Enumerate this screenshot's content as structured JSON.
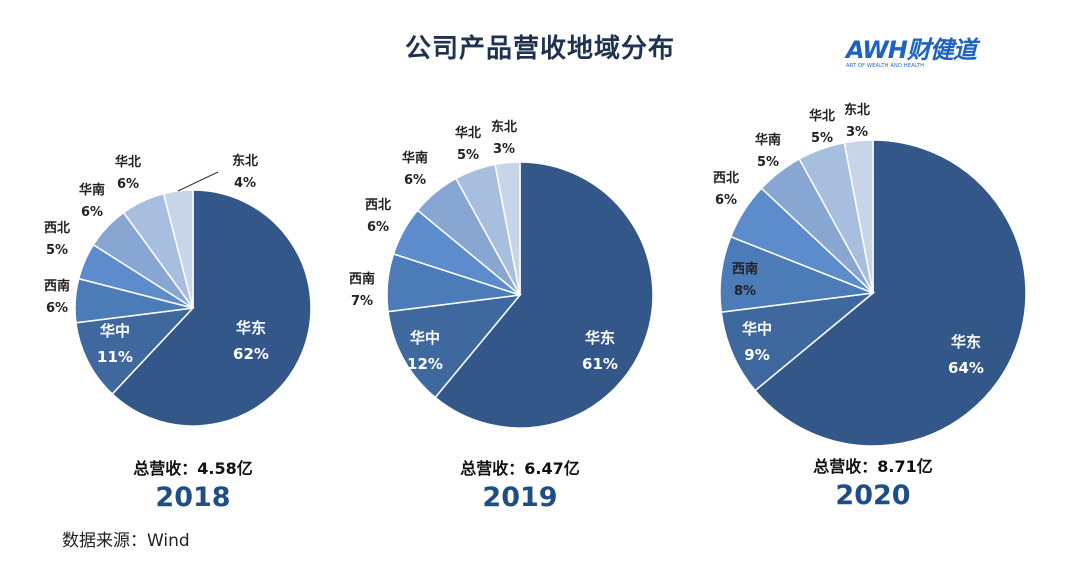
{
  "title": "公司产品营收地域分布",
  "logo": {
    "brand": "AWH财健道",
    "tagline": "ART OF WEALTH AND HEALTH"
  },
  "source": "数据来源：Wind",
  "colors": [
    "#34578a",
    "#3f699e",
    "#4b7cb7",
    "#5c8ccc",
    "#87a7d2",
    "#a8bede",
    "#c8d4e8"
  ],
  "chart_data": [
    {
      "type": "pie",
      "year": "2018",
      "total_label": "总营收：4.58亿",
      "slices": [
        {
          "label": "华东",
          "value": 62,
          "text": "62%"
        },
        {
          "label": "华中",
          "value": 11,
          "text": "11%"
        },
        {
          "label": "西南",
          "value": 6,
          "text": "6%"
        },
        {
          "label": "西北",
          "value": 5,
          "text": "5%"
        },
        {
          "label": "华南",
          "value": 6,
          "text": "6%"
        },
        {
          "label": "华北",
          "value": 6,
          "text": "6%"
        },
        {
          "label": "东北",
          "value": 4,
          "text": "4%"
        }
      ]
    },
    {
      "type": "pie",
      "year": "2019",
      "total_label": "总营收：6.47亿",
      "slices": [
        {
          "label": "华东",
          "value": 61,
          "text": "61%"
        },
        {
          "label": "华中",
          "value": 12,
          "text": "12%"
        },
        {
          "label": "西南",
          "value": 7,
          "text": "7%"
        },
        {
          "label": "西北",
          "value": 6,
          "text": "6%"
        },
        {
          "label": "华南",
          "value": 6,
          "text": "6%"
        },
        {
          "label": "华北",
          "value": 5,
          "text": "5%"
        },
        {
          "label": "东北",
          "value": 3,
          "text": "3%"
        }
      ]
    },
    {
      "type": "pie",
      "year": "2020",
      "total_label": "总营收：8.71亿",
      "slices": [
        {
          "label": "华东",
          "value": 64,
          "text": "64%"
        },
        {
          "label": "华中",
          "value": 9,
          "text": "9%"
        },
        {
          "label": "西南",
          "value": 8,
          "text": "8%"
        },
        {
          "label": "西北",
          "value": 6,
          "text": "6%"
        },
        {
          "label": "华南",
          "value": 5,
          "text": "5%"
        },
        {
          "label": "华北",
          "value": 5,
          "text": "5%"
        },
        {
          "label": "东北",
          "value": 3,
          "text": "3%"
        }
      ]
    }
  ]
}
